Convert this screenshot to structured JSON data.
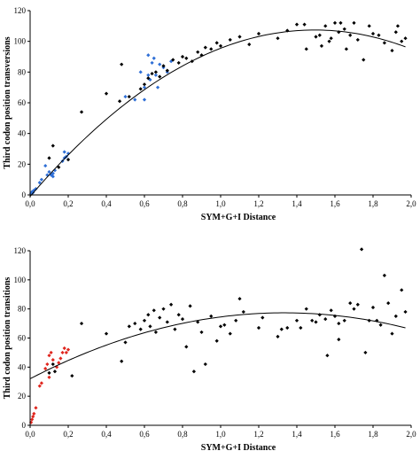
{
  "chart_data": [
    {
      "type": "scatter",
      "xlabel": "SYM+G+I Distance",
      "ylabel": "Third codon position transversions",
      "xlim": [
        0,
        2.0
      ],
      "ylim": [
        0,
        120
      ],
      "xticks": [
        "0,0",
        "0,2",
        "0,4",
        "0,6",
        "0,8",
        "1,0",
        "1,2",
        "1,4",
        "1,6",
        "1,8",
        "2,0"
      ],
      "yticks": [
        "0",
        "20",
        "40",
        "60",
        "80",
        "100",
        "120"
      ],
      "grid": false,
      "trendline": {
        "kind": "quadratic",
        "coefficients": [
          -1.0,
          145.0,
          -48.5
        ],
        "color": "#000000"
      },
      "series": [
        {
          "color": "#2f6fd6",
          "points": [
            [
              0.005,
              1
            ],
            [
              0.01,
              2
            ],
            [
              0.02,
              3
            ],
            [
              0.015,
              1.5
            ],
            [
              0.03,
              4
            ],
            [
              0.05,
              8
            ],
            [
              0.06,
              10
            ],
            [
              0.08,
              19
            ],
            [
              0.09,
              13
            ],
            [
              0.1,
              15
            ],
            [
              0.11,
              13
            ],
            [
              0.12,
              14
            ],
            [
              0.13,
              16
            ],
            [
              0.12,
              12
            ],
            [
              0.17,
              22
            ],
            [
              0.18,
              28
            ],
            [
              0.19,
              25
            ],
            [
              0.2,
              27
            ],
            [
              0.18,
              24
            ],
            [
              0.5,
              64
            ],
            [
              0.55,
              62
            ],
            [
              0.58,
              80
            ],
            [
              0.6,
              70
            ],
            [
              0.62,
              91
            ],
            [
              0.63,
              75
            ],
            [
              0.64,
              86
            ],
            [
              0.65,
              89
            ],
            [
              0.66,
              78
            ],
            [
              0.68,
              85
            ],
            [
              0.7,
              83
            ],
            [
              0.72,
              80
            ],
            [
              0.74,
              87
            ],
            [
              0.6,
              62
            ],
            [
              0.62,
              78
            ],
            [
              0.67,
              70
            ]
          ]
        },
        {
          "color": "#000000",
          "points": [
            [
              0.1,
              24
            ],
            [
              0.12,
              32
            ],
            [
              0.15,
              18
            ],
            [
              0.2,
              23
            ],
            [
              0.27,
              54
            ],
            [
              0.4,
              66
            ],
            [
              0.47,
              61
            ],
            [
              0.48,
              85
            ],
            [
              0.52,
              64
            ],
            [
              0.58,
              69
            ],
            [
              0.6,
              72
            ],
            [
              0.62,
              76
            ],
            [
              0.64,
              79
            ],
            [
              0.66,
              80
            ],
            [
              0.68,
              77
            ],
            [
              0.7,
              84
            ],
            [
              0.72,
              81
            ],
            [
              0.75,
              88
            ],
            [
              0.78,
              86
            ],
            [
              0.8,
              90
            ],
            [
              0.82,
              89
            ],
            [
              0.85,
              87
            ],
            [
              0.88,
              93
            ],
            [
              0.9,
              91
            ],
            [
              0.92,
              96
            ],
            [
              0.95,
              95
            ],
            [
              0.98,
              99
            ],
            [
              1.0,
              97
            ],
            [
              1.05,
              101
            ],
            [
              1.1,
              103
            ],
            [
              1.15,
              98
            ],
            [
              1.2,
              105
            ],
            [
              1.3,
              102
            ],
            [
              1.35,
              107
            ],
            [
              1.4,
              111
            ],
            [
              1.45,
              95
            ],
            [
              1.5,
              103
            ],
            [
              1.52,
              104
            ],
            [
              1.55,
              110
            ],
            [
              1.57,
              100
            ],
            [
              1.6,
              112
            ],
            [
              1.62,
              106
            ],
            [
              1.65,
              108
            ],
            [
              1.66,
              95
            ],
            [
              1.68,
              104
            ],
            [
              1.7,
              112
            ],
            [
              1.72,
              101
            ],
            [
              1.75,
              88
            ],
            [
              1.78,
              110
            ],
            [
              1.8,
              105
            ],
            [
              1.83,
              104
            ],
            [
              1.86,
              99
            ],
            [
              1.9,
              94
            ],
            [
              1.92,
              106
            ],
            [
              1.95,
              100
            ],
            [
              1.97,
              102
            ],
            [
              1.93,
              110
            ],
            [
              1.63,
              112
            ],
            [
              1.58,
              102
            ],
            [
              1.53,
              97
            ],
            [
              1.44,
              111
            ]
          ]
        }
      ]
    },
    {
      "type": "scatter",
      "xlabel": "SYM+G+I Distance",
      "ylabel": "Third codon position transitions",
      "xlim": [
        0,
        2.0
      ],
      "ylim": [
        0,
        120
      ],
      "xticks": [
        "0,0",
        "0,2",
        "0,4",
        "0,6",
        "0,8",
        "1,0",
        "1,2",
        "1,4",
        "1,6",
        "1,8",
        "2,0"
      ],
      "yticks": [
        "0",
        "20",
        "40",
        "60",
        "80",
        "100",
        "120"
      ],
      "grid": false,
      "trendline": {
        "kind": "quadratic",
        "coefficients": [
          32.0,
          68.0,
          -25.5
        ],
        "color": "#000000"
      },
      "series": [
        {
          "color": "#e0261e",
          "points": [
            [
              0.005,
              2
            ],
            [
              0.01,
              4
            ],
            [
              0.015,
              6
            ],
            [
              0.02,
              8
            ],
            [
              0.03,
              12
            ],
            [
              0.05,
              27
            ],
            [
              0.06,
              29
            ],
            [
              0.08,
              39
            ],
            [
              0.09,
              42
            ],
            [
              0.1,
              48
            ],
            [
              0.11,
              50
            ],
            [
              0.12,
              45
            ],
            [
              0.15,
              43
            ],
            [
              0.16,
              46
            ],
            [
              0.17,
              50
            ],
            [
              0.18,
              53
            ],
            [
              0.19,
              50
            ],
            [
              0.2,
              52
            ],
            [
              0.14,
              40
            ],
            [
              0.1,
              33
            ]
          ]
        },
        {
          "color": "#000000",
          "points": [
            [
              0.1,
              36
            ],
            [
              0.12,
              42
            ],
            [
              0.13,
              37
            ],
            [
              0.22,
              34
            ],
            [
              0.27,
              70
            ],
            [
              0.4,
              63
            ],
            [
              0.48,
              44
            ],
            [
              0.5,
              57
            ],
            [
              0.52,
              68
            ],
            [
              0.55,
              70
            ],
            [
              0.58,
              66
            ],
            [
              0.6,
              72
            ],
            [
              0.62,
              76
            ],
            [
              0.63,
              68
            ],
            [
              0.65,
              79
            ],
            [
              0.66,
              64
            ],
            [
              0.68,
              74
            ],
            [
              0.7,
              80
            ],
            [
              0.72,
              71
            ],
            [
              0.74,
              83
            ],
            [
              0.76,
              66
            ],
            [
              0.78,
              76
            ],
            [
              0.8,
              73
            ],
            [
              0.82,
              54
            ],
            [
              0.84,
              82
            ],
            [
              0.86,
              37
            ],
            [
              0.88,
              71
            ],
            [
              0.9,
              64
            ],
            [
              0.92,
              42
            ],
            [
              0.95,
              75
            ],
            [
              0.98,
              58
            ],
            [
              1.0,
              68
            ],
            [
              1.02,
              69
            ],
            [
              1.05,
              63
            ],
            [
              1.08,
              72
            ],
            [
              1.1,
              87
            ],
            [
              1.12,
              78
            ],
            [
              1.2,
              67
            ],
            [
              1.22,
              74
            ],
            [
              1.3,
              61
            ],
            [
              1.32,
              66
            ],
            [
              1.35,
              67
            ],
            [
              1.4,
              72
            ],
            [
              1.42,
              67
            ],
            [
              1.45,
              80
            ],
            [
              1.48,
              72
            ],
            [
              1.5,
              71
            ],
            [
              1.52,
              76
            ],
            [
              1.55,
              73
            ],
            [
              1.58,
              79
            ],
            [
              1.6,
              75
            ],
            [
              1.62,
              70
            ],
            [
              1.65,
              72
            ],
            [
              1.68,
              84
            ],
            [
              1.7,
              80
            ],
            [
              1.72,
              83
            ],
            [
              1.74,
              121
            ],
            [
              1.76,
              50
            ],
            [
              1.78,
              72
            ],
            [
              1.8,
              81
            ],
            [
              1.82,
              72
            ],
            [
              1.84,
              69
            ],
            [
              1.86,
              103
            ],
            [
              1.88,
              84
            ],
            [
              1.9,
              63
            ],
            [
              1.92,
              75
            ],
            [
              1.95,
              93
            ],
            [
              1.97,
              78
            ],
            [
              1.56,
              48
            ],
            [
              1.62,
              59
            ]
          ]
        }
      ]
    }
  ]
}
